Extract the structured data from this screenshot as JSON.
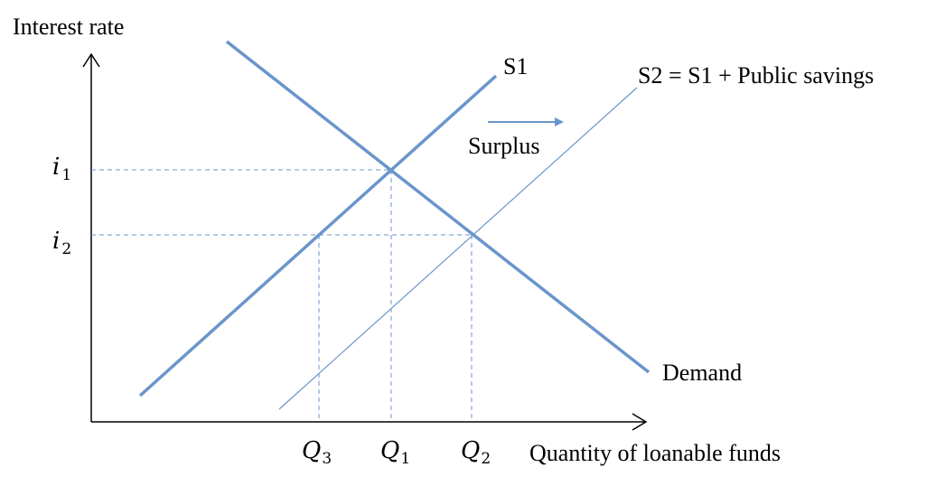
{
  "axes": {
    "y_label": "Interest rate",
    "x_label": "Quantity of loanable funds"
  },
  "curves": {
    "s1_label": "S1",
    "s2_label": "S2 = S1 + Public savings",
    "demand_label": "Demand"
  },
  "annotations": {
    "shift_label": "Surplus"
  },
  "rates": {
    "i1": {
      "base": "i",
      "sub": "1"
    },
    "i2": {
      "base": "i",
      "sub": "2"
    }
  },
  "quantities": {
    "q1": {
      "base": "Q",
      "sub": "1"
    },
    "q2": {
      "base": "Q",
      "sub": "2"
    },
    "q3": {
      "base": "Q",
      "sub": "3"
    }
  },
  "colors": {
    "curve": "#6a95cb",
    "axis": "#000000",
    "guide": "#6a95cb"
  }
}
